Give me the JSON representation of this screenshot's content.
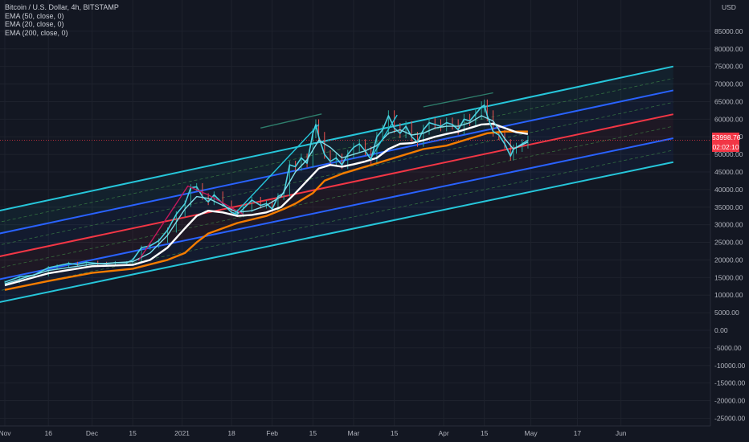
{
  "chart_data": {
    "type": "line",
    "title": "Bitcoin / U.S. Dollar, 4h, BITSTAMP",
    "indicators": [
      "EMA (50, close, 0)",
      "EMA (20, close, 0)",
      "EMA (200, close, 0)"
    ],
    "currency": "USD",
    "last_price": "53998.76",
    "countdown": "02:02:10",
    "ylim": [
      -27000,
      91000
    ],
    "y_ticks": [
      85000,
      80000,
      75000,
      70000,
      65000,
      60000,
      55000,
      50000,
      45000,
      40000,
      35000,
      30000,
      25000,
      20000,
      15000,
      10000,
      5000,
      0,
      -5000,
      -10000,
      -15000,
      -20000,
      -25000
    ],
    "y_tick_labels": [
      "85000.00",
      "80000.00",
      "75000.00",
      "70000.00",
      "65000.00",
      "60000.00",
      "55000.00",
      "50000.00",
      "45000.00",
      "40000.00",
      "35000.00",
      "30000.00",
      "25000.00",
      "20000.00",
      "15000.00",
      "10000.00",
      "5000.00",
      "0.00",
      "-5000.00",
      "-10000.00",
      "-15000.00",
      "-20000.00",
      "-25000.00"
    ],
    "x_range_days": [
      0,
      232
    ],
    "x_ticks": [
      {
        "label": "Nov",
        "day": 0
      },
      {
        "label": "16",
        "day": 15
      },
      {
        "label": "Dec",
        "day": 30
      },
      {
        "label": "15",
        "day": 44
      },
      {
        "label": "2021",
        "day": 61
      },
      {
        "label": "18",
        "day": 78
      },
      {
        "label": "Feb",
        "day": 92
      },
      {
        "label": "15",
        "day": 106
      },
      {
        "label": "Mar",
        "day": 120
      },
      {
        "label": "15",
        "day": 134
      },
      {
        "label": "Apr",
        "day": 151
      },
      {
        "label": "15",
        "day": 165
      },
      {
        "label": "May",
        "day": 181
      },
      {
        "label": "17",
        "day": 197
      },
      {
        "label": "Jun",
        "day": 212
      }
    ],
    "channel": {
      "x": [
        -3,
        230
      ],
      "lines": [
        {
          "role": "upper",
          "color": "#26c6da",
          "values": [
            33800,
            75000
          ]
        },
        {
          "role": "upper-mid",
          "color": "#2962ff",
          "values": [
            27300,
            68200
          ]
        },
        {
          "role": "median",
          "color": "#f23645",
          "values": [
            20800,
            61400
          ]
        },
        {
          "role": "lower-mid",
          "color": "#2962ff",
          "values": [
            14300,
            54600
          ]
        },
        {
          "role": "lower",
          "color": "#26c6da",
          "values": [
            7800,
            47800
          ]
        }
      ]
    },
    "price": {
      "x": [
        0,
        5,
        10,
        15,
        18,
        22,
        25,
        28,
        32,
        35,
        38,
        42,
        44,
        47,
        50,
        53,
        56,
        59,
        62,
        64,
        66,
        68,
        70,
        72,
        75,
        78,
        80,
        82,
        85,
        88,
        90,
        92,
        94,
        96,
        98,
        100,
        102,
        104,
        106,
        107,
        108,
        110,
        112,
        114,
        116,
        118,
        120,
        122,
        124,
        126,
        128,
        130,
        132,
        134,
        136,
        138,
        140,
        142,
        144,
        146,
        148,
        150,
        152,
        154,
        156,
        158,
        160,
        162,
        164,
        165,
        166,
        168,
        170,
        172,
        174,
        175,
        176,
        178,
        180
      ],
      "y": [
        13700,
        15200,
        15700,
        17800,
        18300,
        19000,
        18700,
        19300,
        19000,
        18900,
        19200,
        19200,
        20000,
        23500,
        24000,
        25500,
        28500,
        33000,
        36000,
        40500,
        40800,
        38000,
        36500,
        38500,
        36000,
        33500,
        33000,
        34500,
        37000,
        35500,
        36000,
        34500,
        38000,
        39000,
        47000,
        46500,
        49000,
        47500,
        56000,
        58500,
        55000,
        50000,
        48000,
        49000,
        47000,
        50000,
        52000,
        53000,
        51000,
        48500,
        55000,
        57000,
        61000,
        57500,
        56000,
        58000,
        55000,
        53500,
        57000,
        59000,
        58500,
        58000,
        59000,
        58500,
        57000,
        60000,
        59500,
        61500,
        63500,
        64000,
        61000,
        56500,
        55500,
        53000,
        49500,
        51500,
        52000,
        53000,
        54000
      ]
    },
    "ema20": {
      "x": [
        0,
        15,
        30,
        44,
        50,
        56,
        62,
        66,
        70,
        75,
        80,
        85,
        90,
        95,
        100,
        104,
        108,
        112,
        116,
        120,
        124,
        128,
        132,
        136,
        140,
        144,
        148,
        152,
        156,
        160,
        164,
        168,
        172,
        175,
        180
      ],
      "y": [
        13200,
        17000,
        18800,
        19500,
        22000,
        27000,
        34500,
        38000,
        37500,
        35500,
        33500,
        34000,
        35500,
        38000,
        45000,
        48500,
        54000,
        52000,
        49000,
        50000,
        51000,
        52500,
        56000,
        57000,
        55500,
        56000,
        57500,
        58000,
        58000,
        59000,
        61000,
        59500,
        54500,
        51500,
        53500
      ]
    },
    "ema50": {
      "x": [
        0,
        15,
        30,
        44,
        50,
        56,
        62,
        66,
        70,
        75,
        80,
        85,
        90,
        95,
        100,
        104,
        108,
        112,
        116,
        120,
        124,
        128,
        132,
        136,
        140,
        144,
        148,
        152,
        156,
        160,
        164,
        168,
        172,
        176,
        180
      ],
      "y": [
        12800,
        16200,
        18200,
        18600,
        20000,
        23500,
        29000,
        32500,
        34000,
        33500,
        32500,
        32800,
        33500,
        35000,
        39000,
        42500,
        46000,
        47000,
        46500,
        47200,
        48000,
        49000,
        51500,
        53000,
        53200,
        54000,
        55000,
        55800,
        56500,
        57500,
        58500,
        58700,
        57500,
        56300,
        55800
      ]
    },
    "ema200": {
      "x": [
        0,
        15,
        30,
        44,
        56,
        62,
        66,
        70,
        80,
        90,
        96,
        100,
        106,
        110,
        116,
        120,
        128,
        136,
        144,
        152,
        160,
        166,
        172,
        180
      ],
      "y": [
        11500,
        14000,
        16300,
        17500,
        20000,
        22000,
        25000,
        27500,
        30500,
        32500,
        34500,
        36000,
        39000,
        42500,
        44500,
        45500,
        47500,
        49500,
        51500,
        52500,
        54500,
        56000,
        56500,
        56500
      ]
    },
    "drawings": [
      {
        "color": "#c2185b",
        "x": [
          46,
          63,
          70,
          82
        ],
        "y": [
          19800,
          41000,
          38500,
          33000
        ]
      },
      {
        "color": "#26c6da",
        "x": [
          79,
          108
        ],
        "y": [
          33000,
          58500
        ]
      },
      {
        "color": "#26c6da",
        "x": [
          126,
          135
        ],
        "y": [
          49000,
          61200
        ]
      },
      {
        "color": "#2e7d6b",
        "x": [
          88,
          109
        ],
        "y": [
          57500,
          61500
        ]
      },
      {
        "color": "#2e7d6b",
        "x": [
          144,
          168
        ],
        "y": [
          63500,
          67500
        ]
      }
    ]
  }
}
